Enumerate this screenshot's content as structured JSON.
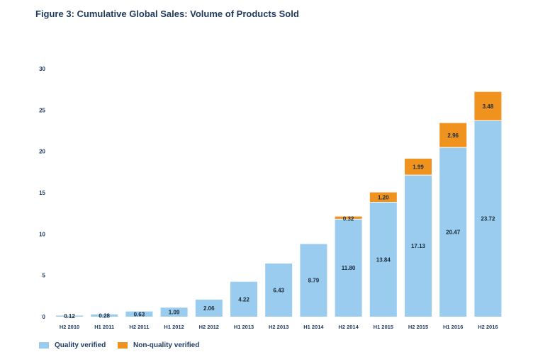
{
  "figure_title": "Figure 3: Cumulative Global Sales: Volume of Products Sold",
  "legend": [
    {
      "label": "Quality verified",
      "color": "#99ccef"
    },
    {
      "label": "Non-quality verified",
      "color": "#f0931e"
    }
  ],
  "chart_data": {
    "type": "bar",
    "stacked": true,
    "title": "Figure 3: Cumulative Global Sales: Volume of Products Sold",
    "xlabel": "",
    "ylabel": "",
    "ylim": [
      0,
      30
    ],
    "yticks": [
      0,
      5,
      10,
      15,
      20,
      25,
      30
    ],
    "grid": false,
    "legend_position": "bottom-left",
    "categories": [
      "H2 2010",
      "H1 2011",
      "H2 2011",
      "H1 2012",
      "H2 2012",
      "H1 2013",
      "H2 2013",
      "H1 2014",
      "H2 2014",
      "H1 2015",
      "H2 2015",
      "H1 2016",
      "H2 2016"
    ],
    "series": [
      {
        "name": "Quality verified",
        "color": "#99ccef",
        "values": [
          0.12,
          0.28,
          0.63,
          1.09,
          2.06,
          4.22,
          6.43,
          8.79,
          11.8,
          13.84,
          17.13,
          20.47,
          23.72
        ],
        "labels": [
          "0.12",
          "0.28",
          "0.63",
          "1.09",
          "2.06",
          "4.22",
          "6.43",
          "8.79",
          "11.80",
          "13.84",
          "17.13",
          "20.47",
          "23.72"
        ]
      },
      {
        "name": "Non-quality verified",
        "color": "#f0931e",
        "values": [
          0,
          0,
          0,
          0,
          0,
          0,
          0,
          0,
          0.32,
          1.2,
          1.99,
          2.96,
          3.48
        ],
        "labels": [
          "",
          "",
          "",
          "",
          "",
          "",
          "",
          "",
          "0.32",
          "1.20",
          "1.99",
          "2.96",
          "3.48"
        ]
      }
    ]
  }
}
